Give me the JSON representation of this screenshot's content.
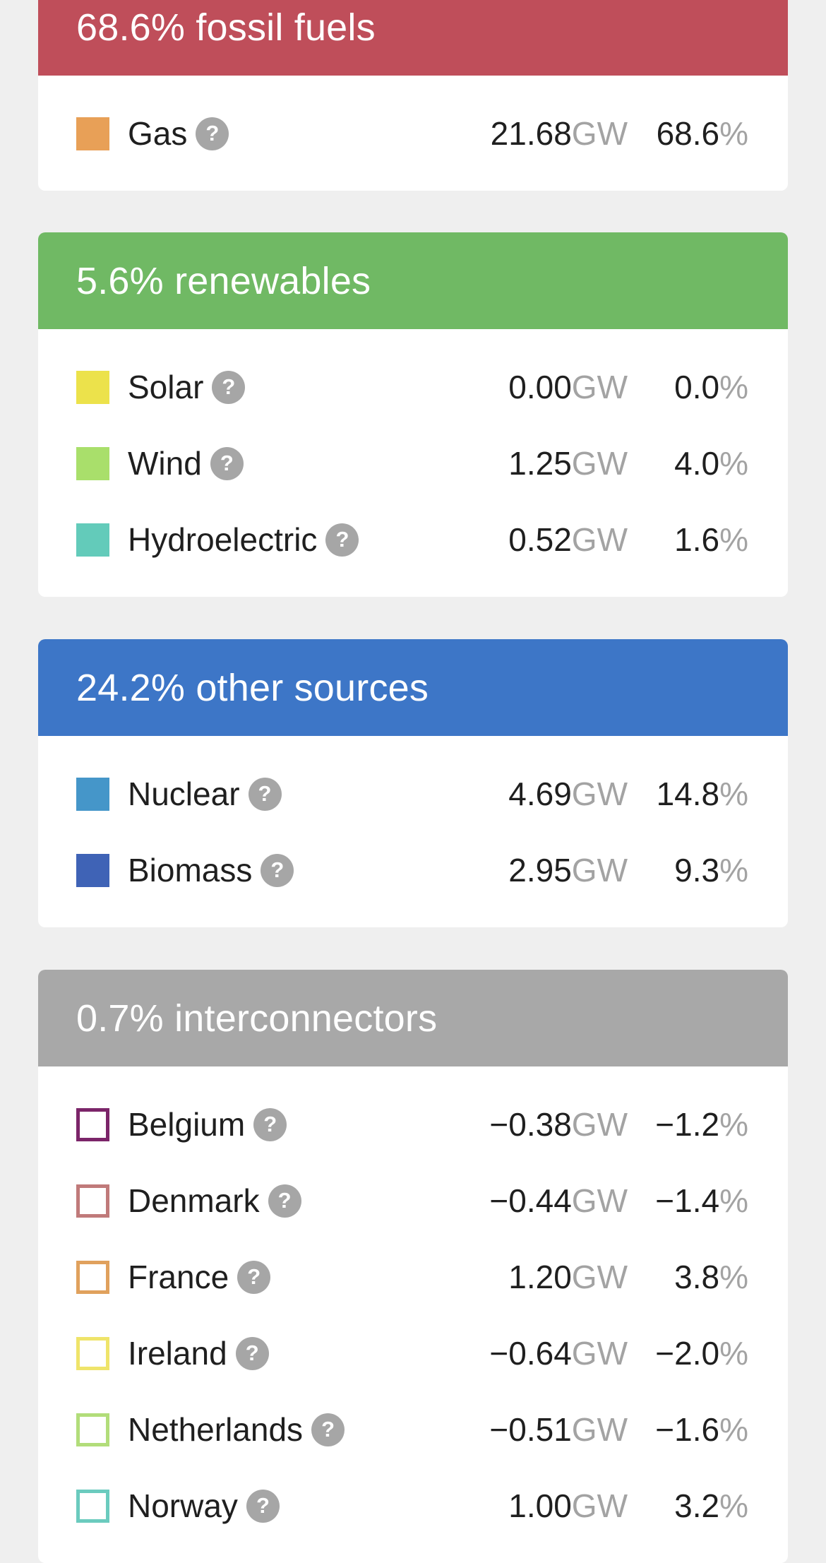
{
  "sections": [
    {
      "title": "68.6% fossil fuels",
      "color": "#bf4e5a",
      "rows": [
        {
          "name": "Gas",
          "gw": "21.68",
          "pct": "68.6",
          "color": "#e8a057",
          "outline": false
        }
      ]
    },
    {
      "title": "5.6% renewables",
      "color": "#70b964",
      "rows": [
        {
          "name": "Solar",
          "gw": "0.00",
          "pct": "0.0",
          "color": "#ece24b",
          "outline": false
        },
        {
          "name": "Wind",
          "gw": "1.25",
          "pct": "4.0",
          "color": "#a9df6b",
          "outline": false
        },
        {
          "name": "Hydroelectric",
          "gw": "0.52",
          "pct": "1.6",
          "color": "#63cbba",
          "outline": false
        }
      ]
    },
    {
      "title": "24.2% other sources",
      "color": "#3d76c7",
      "rows": [
        {
          "name": "Nuclear",
          "gw": "4.69",
          "pct": "14.8",
          "color": "#4596c9",
          "outline": false
        },
        {
          "name": "Biomass",
          "gw": "2.95",
          "pct": "9.3",
          "color": "#3f63b6",
          "outline": false
        }
      ]
    },
    {
      "title": "0.7% interconnectors",
      "color": "#a8a8a8",
      "rows": [
        {
          "name": "Belgium",
          "gw": "−0.38",
          "pct": "−1.2",
          "color": "#7b2569",
          "outline": true
        },
        {
          "name": "Denmark",
          "gw": "−0.44",
          "pct": "−1.4",
          "color": "#c07a7a",
          "outline": true
        },
        {
          "name": "France",
          "gw": "1.20",
          "pct": "3.8",
          "color": "#e0a15d",
          "outline": true
        },
        {
          "name": "Ireland",
          "gw": "−0.64",
          "pct": "−2.0",
          "color": "#efe46a",
          "outline": true
        },
        {
          "name": "Netherlands",
          "gw": "−0.51",
          "pct": "−1.6",
          "color": "#b2dd7a",
          "outline": true
        },
        {
          "name": "Norway",
          "gw": "1.00",
          "pct": "3.2",
          "color": "#6bcbbe",
          "outline": true
        }
      ]
    }
  ],
  "labels": {
    "gw_unit": "GW",
    "pct_unit": "%",
    "help_glyph": "?"
  },
  "icons": {
    "help": "question-mark-circle-icon"
  }
}
